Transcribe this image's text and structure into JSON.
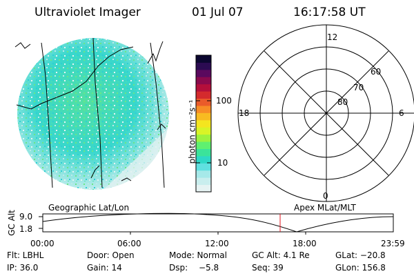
{
  "header": {
    "title": "Ultraviolet Imager",
    "date": "01 Jul 07",
    "time": "16:17:58 UT"
  },
  "colorbar": {
    "unit": "photon cm⁻²s⁻¹",
    "ticks": [
      "100",
      "10"
    ],
    "colors": [
      "#e6f3f3",
      "#c9eeee",
      "#a6e9e9",
      "#5fe0e0",
      "#2ed8c6",
      "#3be39a",
      "#5ff070",
      "#9df23e",
      "#d8f427",
      "#f4e51f",
      "#f8bb21",
      "#f78d26",
      "#ea5b2a",
      "#d42a2d",
      "#b40f3b",
      "#8a0a4d",
      "#5a095e",
      "#2b0b52",
      "#0b0730"
    ]
  },
  "polar": {
    "labels": [
      "12",
      "60",
      "70",
      "80",
      "18",
      "6",
      "0"
    ]
  },
  "orbit": {
    "left_label": "Geographic Lat/Lon",
    "right_label": "Apex MLat/MLT",
    "axis_label": "GC Alt",
    "y_ticks": [
      "9.0",
      "1.8"
    ],
    "x_ticks": [
      "00:00",
      "06:00",
      "12:00",
      "18:00",
      "23:59"
    ],
    "marker_color": "#e0141e"
  },
  "footer": {
    "row1": [
      "Flt: LBHL",
      "Door: Open",
      "Mode: Normal",
      "GC Alt: 4.1 Re",
      "GLat: −20.8"
    ],
    "row2": [
      "IP: 36.0",
      "Gain: 14",
      "Dsp:",
      "−5.8",
      "Seq: 39",
      "GLon: 156.8"
    ]
  }
}
